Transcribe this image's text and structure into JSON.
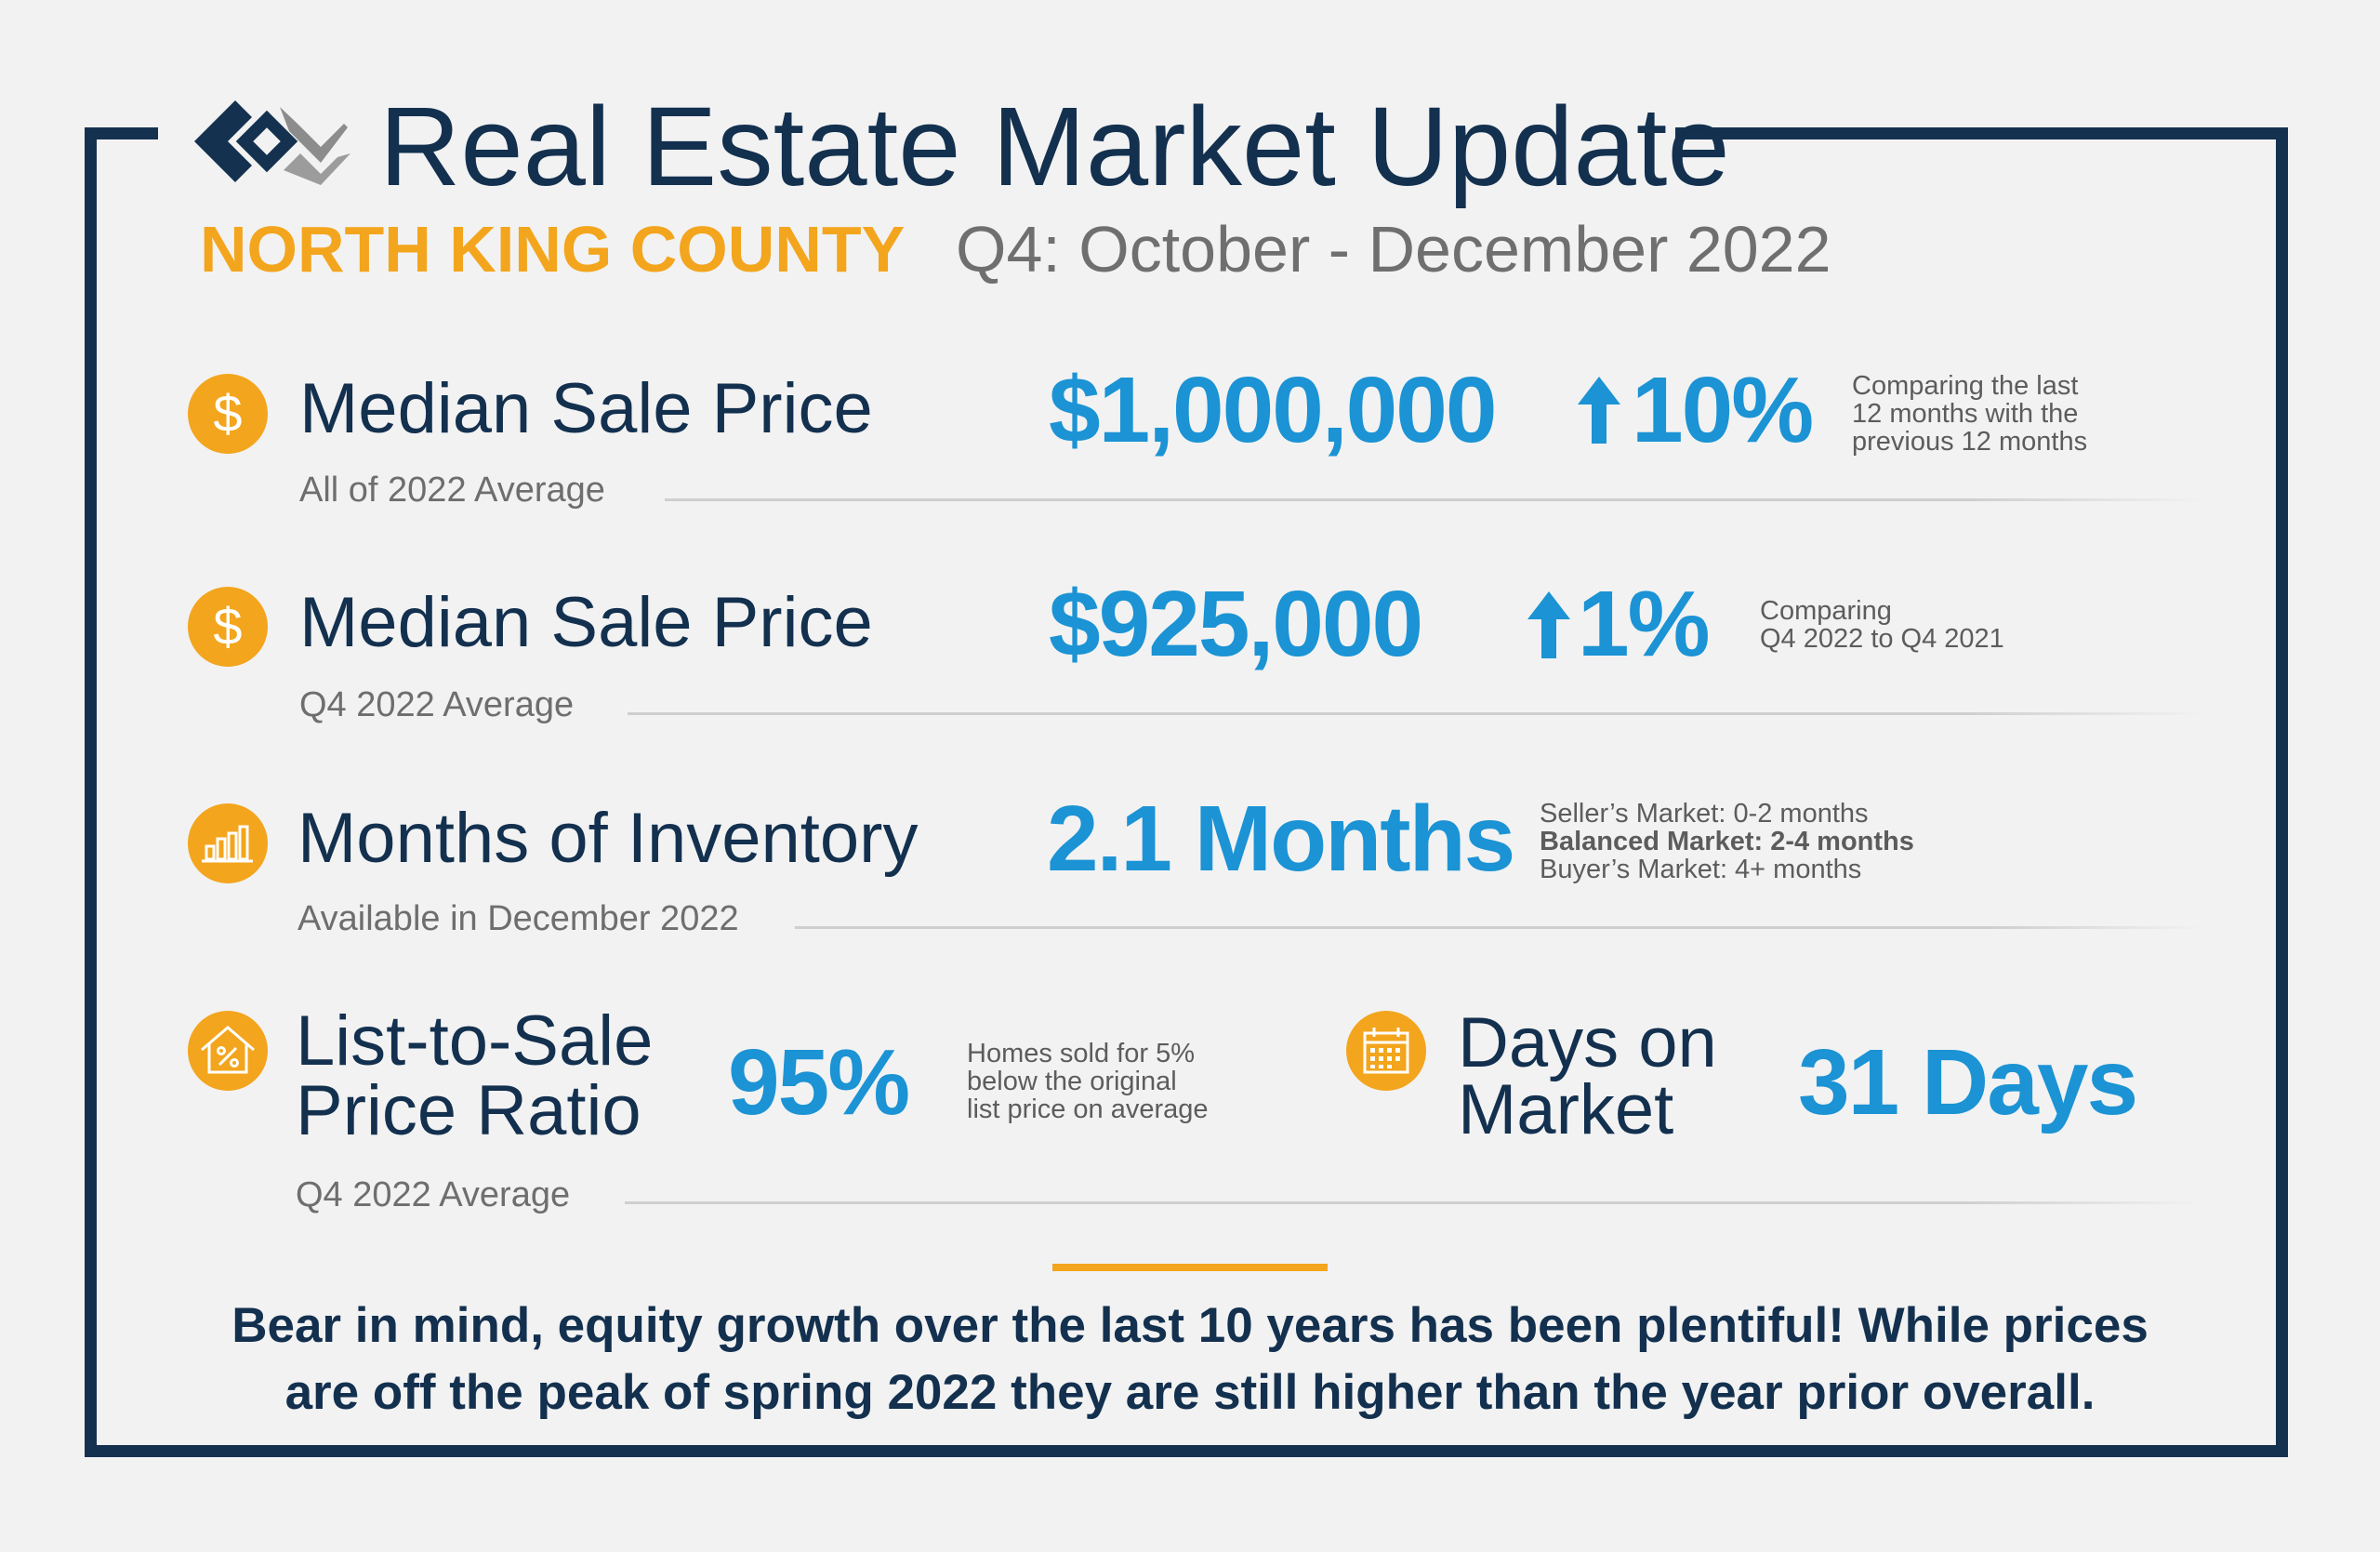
{
  "header": {
    "title": "Real Estate Market Update",
    "region": "NORTH KING COUNTY",
    "period": "Q4: October - December 2022"
  },
  "metrics": {
    "median_2022": {
      "icon": "dollar-icon",
      "label": "Median Sale Price",
      "sublabel": "All of 2022 Average",
      "value": "$1,000,000",
      "change": "10%",
      "change_direction": "up",
      "note": [
        "Comparing the last",
        "12 months with the",
        "previous 12 months"
      ]
    },
    "median_q4": {
      "icon": "dollar-icon",
      "label": "Median Sale Price",
      "sublabel": "Q4 2022 Average",
      "value": "$925,000",
      "change": "1%",
      "change_direction": "up",
      "note": [
        "Comparing",
        "Q4 2022 to Q4 2021"
      ]
    },
    "inventory": {
      "icon": "bar-chart-icon",
      "label": "Months of Inventory",
      "sublabel": "Available in December 2022",
      "value": "2.1 Months",
      "note": [
        "Seller’s Market: 0-2 months",
        "Balanced Market: 2-4 months",
        "Buyer’s Market: 4+ months"
      ]
    },
    "list_to_sale": {
      "icon": "house-percent-icon",
      "label_lines": [
        "List-to-Sale",
        "Price Ratio"
      ],
      "sublabel": "Q4 2022 Average",
      "value": "95%",
      "note": [
        "Homes sold for 5%",
        "below the original",
        "list price on average"
      ]
    },
    "days_on_market": {
      "icon": "calendar-icon",
      "label_lines": [
        "Days on",
        "Market"
      ],
      "value": "31 Days"
    }
  },
  "closing": [
    "Bear in mind, equity growth over the last 10 years has been plentiful! While prices",
    "are off the peak of spring 2022 they are still higher than the year prior overall."
  ],
  "colors": {
    "navy": "#14314f",
    "accent_orange": "#f3a51d",
    "value_blue": "#1b93d4",
    "background": "#f2f2f2"
  }
}
